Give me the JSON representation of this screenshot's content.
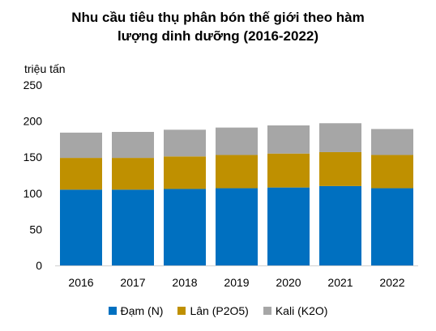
{
  "chart_data": {
    "type": "bar",
    "stacked": true,
    "title_lines": [
      "Nhu cầu tiêu thụ phân bón thế giới theo hàm",
      "lượng dinh dưỡng (2016-2022)"
    ],
    "unit_label": "triệu tấn",
    "categories": [
      "2016",
      "2017",
      "2018",
      "2019",
      "2020",
      "2021",
      "2022"
    ],
    "series": [
      {
        "name": "Đạm (N)",
        "color": "#0070C0",
        "values": [
          105,
          105,
          106,
          107,
          108,
          110,
          107
        ]
      },
      {
        "name": "Lân (P2O5)",
        "color": "#BF9000",
        "values": [
          44,
          44,
          45,
          46,
          47,
          47,
          46
        ]
      },
      {
        "name": "Kali (K2O)",
        "color": "#A6A6A6",
        "values": [
          35,
          36,
          37,
          38,
          39,
          40,
          36
        ]
      }
    ],
    "ylim": [
      0,
      250
    ],
    "yticks": [
      "0",
      "50",
      "100",
      "150",
      "200",
      "250"
    ],
    "grid": false,
    "legend_position": "bottom"
  }
}
